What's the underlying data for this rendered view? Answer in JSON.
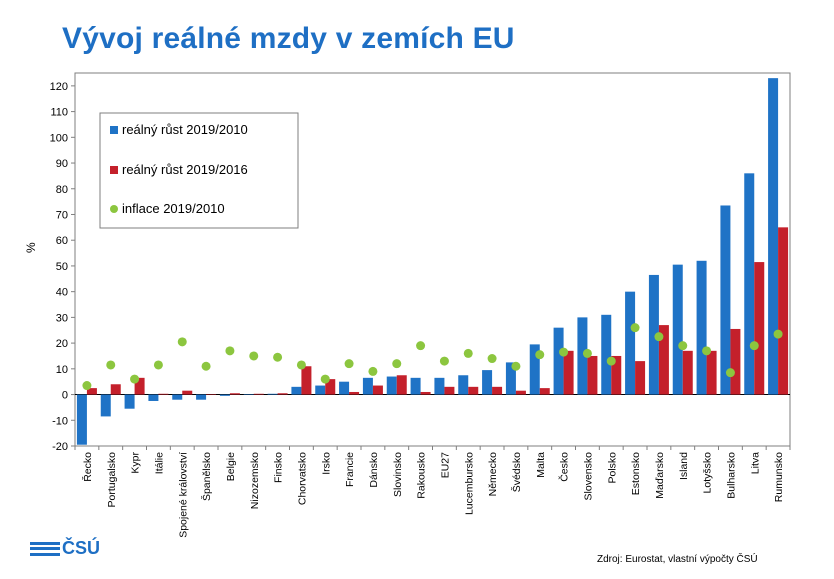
{
  "title": "Vývoj reálné mzdy v zemích EU",
  "ylabel": "%",
  "source": "Zdroj: Eurostat, vlastní výpočty ČSÚ",
  "logo": {
    "text": "ČSÚ"
  },
  "colors": {
    "blue": "#1f73c6",
    "red": "#c4202b",
    "green": "#8cc63f",
    "title": "#1e6fc4"
  },
  "chart_data": {
    "type": "bar",
    "ylim": [
      -20,
      125
    ],
    "yticks": [
      -20,
      -10,
      0,
      10,
      20,
      30,
      40,
      50,
      60,
      70,
      80,
      90,
      100,
      110,
      120
    ],
    "grid": false,
    "legend_position": "top-left",
    "categories": [
      "Řecko",
      "Portugalsko",
      "Kypr",
      "Itálie",
      "Spojené království",
      "Španělsko",
      "Belgie",
      "Nizozemsko",
      "Finsko",
      "Chorvatsko",
      "Irsko",
      "Francie",
      "Dánsko",
      "Slovinsko",
      "Rakousko",
      "EU27",
      "Lucembursko",
      "Německo",
      "Švédsko",
      "Malta",
      "Česko",
      "Slovensko",
      "Polsko",
      "Estonsko",
      "Maďarsko",
      "Island",
      "Lotyšsko",
      "Bulharsko",
      "Litva",
      "Rumunsko"
    ],
    "series": [
      {
        "name": "reálný růst 2019/2010",
        "kind": "bar",
        "color": "#1f73c6",
        "values": [
          -19.5,
          -8.5,
          -5.5,
          -2.5,
          -2.0,
          -2.0,
          -0.5,
          0.2,
          0.3,
          3.0,
          3.5,
          5.0,
          6.5,
          7.0,
          6.5,
          6.5,
          7.5,
          9.5,
          12.5,
          19.5,
          26.0,
          30.0,
          31.0,
          40.0,
          46.5,
          50.5,
          52.0,
          73.5,
          86.0,
          123.0
        ]
      },
      {
        "name": "reálný růst 2019/2016",
        "kind": "bar",
        "color": "#c4202b",
        "values": [
          2.5,
          4.0,
          6.5,
          0.3,
          1.5,
          0.2,
          0.5,
          0.3,
          0.5,
          11.0,
          6.0,
          1.0,
          3.5,
          7.5,
          1.0,
          3.0,
          3.0,
          3.0,
          1.5,
          2.5,
          17.0,
          15.0,
          15.0,
          13.0,
          27.0,
          17.0,
          17.0,
          25.5,
          51.5,
          65.0
        ]
      },
      {
        "name": "inflace 2019/2010",
        "kind": "dot",
        "color": "#8cc63f",
        "values": [
          3.5,
          11.5,
          6.0,
          11.5,
          20.5,
          11.0,
          17.0,
          15.0,
          14.5,
          11.5,
          6.0,
          12.0,
          9.0,
          12.0,
          19.0,
          13.0,
          16.0,
          14.0,
          11.0,
          15.5,
          16.5,
          16.0,
          13.0,
          26.0,
          22.5,
          19.0,
          17.0,
          8.5,
          19.0,
          23.5
        ]
      }
    ]
  }
}
